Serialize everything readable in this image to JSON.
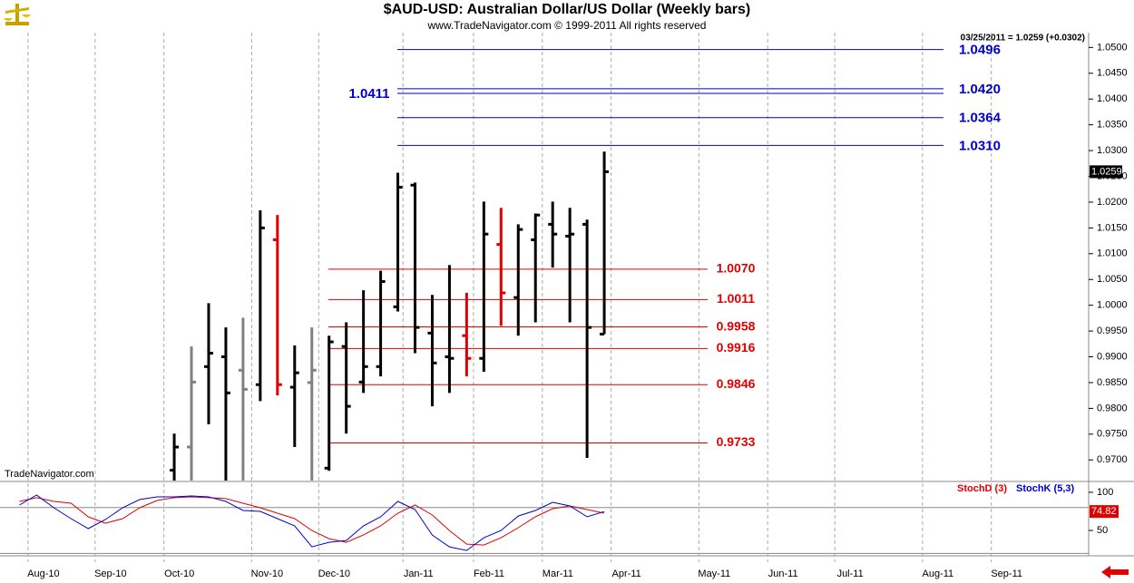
{
  "chart_data": [
    {
      "type": "ohlc",
      "title": "$AUD-USD:  Australian Dollar/US Dollar  (Weekly bars)",
      "subtitle": "www.TradeNavigator.com © 1999-2011 All rights reserved",
      "info": "03/25/2011 = 1.0259 (+0.0302)",
      "watermark": "TradeNavigator.com",
      "open": [
        null,
        null,
        null,
        null,
        null,
        null,
        null,
        null,
        null,
        0.968,
        0.9725,
        0.9881,
        0.99,
        0.9874,
        0.9846,
        1.0127,
        0.9841,
        0.985,
        0.9684,
        0.992,
        0.9851,
        0.9881,
        0.9997,
        1.0233,
        0.9946,
        0.99,
        0.9941,
        0.9897,
        1.0118,
        1.0015,
        1.0127,
        1.0157,
        1.0134,
        1.0157,
        0.9944
      ],
      "high": [
        null,
        null,
        null,
        null,
        null,
        null,
        null,
        null,
        null,
        0.9751,
        0.992,
        1.0004,
        0.9957,
        0.9976,
        1.0184,
        1.0175,
        0.9922,
        0.9957,
        0.9941,
        0.9967,
        1.0029,
        1.0067,
        1.0257,
        1.0238,
        1.002,
        1.0078,
        1.0024,
        1.0201,
        1.0189,
        1.0157,
        1.0178,
        1.0201,
        1.0189,
        1.0166,
        1.0298
      ],
      "low": [
        null,
        null,
        null,
        null,
        null,
        null,
        null,
        null,
        null,
        0.962,
        0.962,
        0.9769,
        0.962,
        0.962,
        0.9814,
        0.9825,
        0.9725,
        0.962,
        0.9679,
        0.9751,
        0.983,
        0.9862,
        0.9988,
        0.9907,
        0.9804,
        0.983,
        0.9862,
        0.9871,
        0.996,
        0.9941,
        0.9967,
        1.0073,
        0.9967,
        0.9704,
        0.9944
      ],
      "close": [
        null,
        null,
        null,
        null,
        null,
        null,
        null,
        null,
        null,
        0.9725,
        0.9851,
        0.9907,
        0.983,
        0.9837,
        1.015,
        0.9846,
        0.9869,
        0.9874,
        0.9929,
        0.9804,
        0.9881,
        1.0046,
        1.0229,
        0.9957,
        0.9888,
        0.9897,
        0.9897,
        1.0138,
        1.0024,
        1.0147,
        1.0175,
        1.0138,
        1.0138,
        0.9957,
        1.0259
      ],
      "colors": [
        null,
        null,
        null,
        null,
        null,
        null,
        null,
        null,
        null,
        "#000000",
        "#808080",
        "#000000",
        "#000000",
        "#808080",
        "#000000",
        "#e00000",
        "#000000",
        "#808080",
        "#000000",
        "#000000",
        "#000000",
        "#000000",
        "#000000",
        "#000000",
        "#000000",
        "#000000",
        "#e00000",
        "#000000",
        "#e00000",
        "#000000",
        "#000000",
        "#000000",
        "#000000",
        "#000000",
        "#000000"
      ],
      "ylim": [
        0.966,
        1.052
      ],
      "yticks": [
        {
          "value": 0.97,
          "label": "0.9700"
        },
        {
          "value": 0.975,
          "label": "0.9750"
        },
        {
          "value": 0.98,
          "label": "0.9800"
        },
        {
          "value": 0.985,
          "label": "0.9850"
        },
        {
          "value": 0.99,
          "label": "0.9900"
        },
        {
          "value": 0.995,
          "label": "0.9950"
        },
        {
          "value": 1.0,
          "label": "1.0000"
        },
        {
          "value": 1.005,
          "label": "1.0050"
        },
        {
          "value": 1.01,
          "label": "1.0100"
        },
        {
          "value": 1.015,
          "label": "1.0150"
        },
        {
          "value": 1.02,
          "label": "1.0200"
        },
        {
          "value": 1.025,
          "label": "1.0250"
        },
        {
          "value": 1.03,
          "label": "1.0300"
        },
        {
          "value": 1.035,
          "label": "1.0350"
        },
        {
          "value": 1.04,
          "label": "1.0400"
        },
        {
          "value": 1.045,
          "label": "1.0450"
        },
        {
          "value": 1.05,
          "label": "1.0500"
        }
      ],
      "level_groups": [
        {
          "color": "#0000cc",
          "levels": [
            {
              "value": 1.0496,
              "label": "1.0496"
            },
            {
              "value": 1.042,
              "label": "1.0420"
            },
            {
              "value": 1.0411,
              "label": "1.0411",
              "label_side": "left"
            },
            {
              "value": 1.0364,
              "label": "1.0364"
            },
            {
              "value": 1.031,
              "label": "1.0310"
            }
          ]
        },
        {
          "color": "#e00000",
          "levels": [
            {
              "value": 1.007,
              "label": "1.0070"
            },
            {
              "value": 1.0011,
              "label": "1.0011"
            },
            {
              "value": 0.9958,
              "label": "0.9958"
            },
            {
              "value": 0.9916,
              "label": "0.9916"
            },
            {
              "value": 0.9846,
              "label": "0.9846"
            },
            {
              "value": 0.9733,
              "label": "0.9733"
            }
          ]
        }
      ]
    },
    {
      "type": "line",
      "series": [
        {
          "name": "StochD (3)",
          "color": "#e00000",
          "values": [
            88.1,
            92.9,
            88.1,
            85.7,
            67.9,
            59.5,
            65.5,
            79.8,
            89.3,
            92.9,
            94.0,
            92.9,
            91.7,
            85.7,
            79.8,
            72.6,
            65.5,
            50.0,
            39.3,
            34.5,
            44.0,
            56.0,
            72.6,
            83.3,
            70.2,
            50.0,
            32.1,
            31.0,
            40.5,
            53.6,
            67.9,
            78.6,
            82.1,
            77.4,
            72.6
          ]
        },
        {
          "name": "StochK (5,3)",
          "color": "#0000cc",
          "values": [
            83.3,
            96.4,
            79.8,
            65.5,
            52.4,
            64.3,
            79.8,
            90.5,
            94.0,
            94.0,
            95.2,
            94.0,
            88.1,
            76.2,
            75.0,
            65.5,
            56.0,
            28.6,
            34.5,
            36.9,
            56.0,
            67.9,
            88.1,
            77.4,
            44.0,
            28.6,
            23.8,
            40.5,
            50.0,
            69.0,
            76.2,
            86.9,
            82.1,
            67.9,
            74.82
          ]
        }
      ],
      "ylim": [
        18,
        113
      ],
      "yticks": [
        50,
        100
      ],
      "levels": [
        80,
        20
      ],
      "xlim": [
        -1.13,
        62.16
      ],
      "xticks": [
        {
          "value": 0.5,
          "label": "Aug-10"
        },
        {
          "value": 4.4,
          "label": "Sep-10"
        },
        {
          "value": 8.4,
          "label": "Oct-10"
        },
        {
          "value": 13.5,
          "label": "Nov-10"
        },
        {
          "value": 17.4,
          "label": "Dec-10"
        },
        {
          "value": 22.3,
          "label": "Jan-11"
        },
        {
          "value": 26.4,
          "label": "Feb-11"
        },
        {
          "value": 30.4,
          "label": "Mar-11"
        },
        {
          "value": 34.4,
          "label": "Apr-11"
        },
        {
          "value": 39.5,
          "label": "May-11"
        },
        {
          "value": 43.5,
          "label": "Jun-11"
        },
        {
          "value": 47.4,
          "label": "Jul-11"
        },
        {
          "value": 52.5,
          "label": "Aug-11"
        },
        {
          "value": 56.5,
          "label": "Sep-11"
        }
      ]
    }
  ]
}
